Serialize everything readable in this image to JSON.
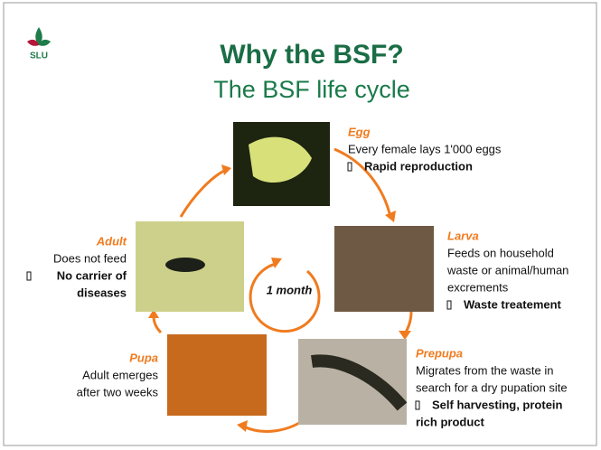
{
  "logo": "SLU",
  "title": "Why the BSF?",
  "subtitle": "The BSF life cycle",
  "center_label": "1 month",
  "stages": [
    {
      "name": "Egg",
      "description": [
        "Every female lays 1'000 eggs"
      ],
      "benefit": [
        "Rapid reproduction"
      ]
    },
    {
      "name": "Larva",
      "description": [
        "Feeds on household",
        "waste or animal/human",
        "excrements"
      ],
      "benefit": [
        "Waste treatement"
      ]
    },
    {
      "name": "Prepupa",
      "description": [
        "Migrates from the waste in",
        "search for a dry pupation site"
      ],
      "benefit": [
        "Self harvesting, protein",
        "rich product"
      ]
    },
    {
      "name": "Pupa",
      "description": [
        "Adult emerges",
        "after two weeks"
      ]
    },
    {
      "name": "Adult",
      "description": [
        "Does not feed"
      ],
      "benefit": [
        "No carrier of",
        "diseases"
      ]
    }
  ]
}
